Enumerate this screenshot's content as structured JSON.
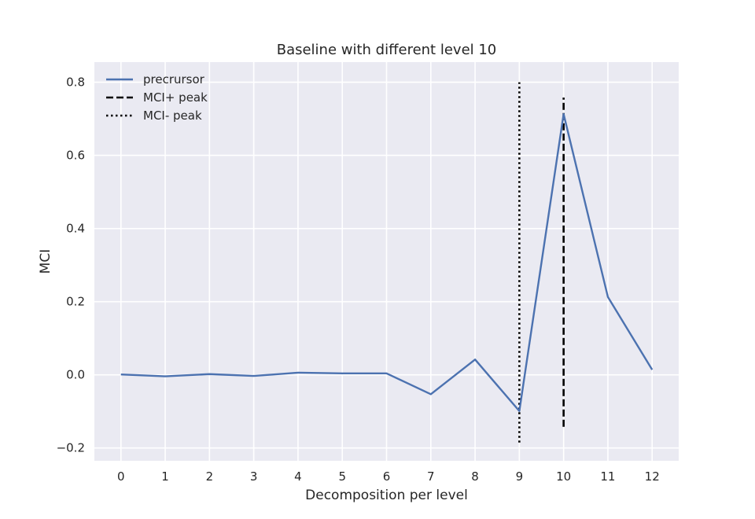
{
  "chart_data": {
    "type": "line",
    "title": "Baseline with different level 10",
    "xlabel": "Decomposition per level",
    "ylabel": "MCI",
    "xlim": [
      -0.6,
      12.6
    ],
    "ylim": [
      -0.235,
      0.855
    ],
    "x_ticks": [
      "0",
      "1",
      "2",
      "3",
      "4",
      "5",
      "6",
      "7",
      "8",
      "9",
      "10",
      "11",
      "12"
    ],
    "y_ticks": [
      "−0.2",
      "0.0",
      "0.2",
      "0.4",
      "0.6",
      "0.8"
    ],
    "y_tick_values": [
      -0.2,
      0.0,
      0.2,
      0.4,
      0.6,
      0.8
    ],
    "grid": true,
    "legend_position": "top-left",
    "series": [
      {
        "name": "precrursor",
        "style": "solid",
        "color": "#4C72B0",
        "x": [
          0,
          1,
          2,
          3,
          4,
          5,
          6,
          7,
          8,
          9,
          10,
          11,
          12
        ],
        "values": [
          0.001,
          -0.004,
          0.002,
          -0.003,
          0.006,
          0.004,
          0.004,
          -0.053,
          0.042,
          -0.099,
          0.713,
          0.213,
          0.014
        ]
      }
    ],
    "vlines": [
      {
        "name": "MCI+ peak",
        "style": "dashed",
        "color": "#000000",
        "x": 10,
        "ymin": -0.142,
        "ymax": 0.758
      },
      {
        "name": "MCI- peak",
        "style": "dotted",
        "color": "#000000",
        "x": 9,
        "ymin": -0.185,
        "ymax": 0.8
      }
    ],
    "colors": {
      "plot_background": "#EAEAF2",
      "grid": "#FFFFFF"
    }
  }
}
